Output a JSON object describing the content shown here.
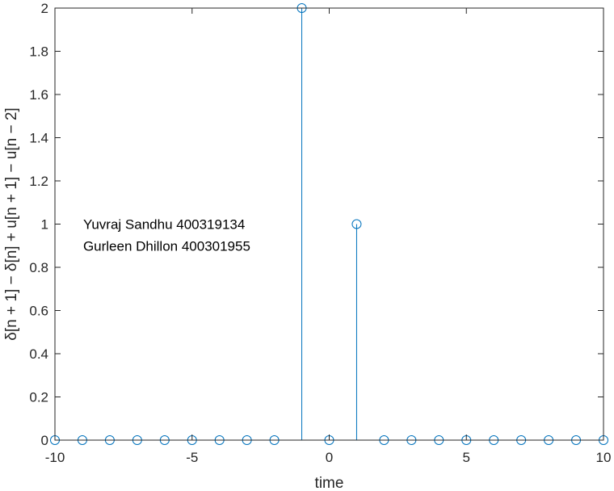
{
  "chart_data": {
    "type": "stem",
    "title": "",
    "xlabel": "time",
    "ylabel": "δ[n + 1] − δ[n] + u[n + 1] − u[n − 2]",
    "xlim": [
      -10,
      10
    ],
    "ylim": [
      0,
      2
    ],
    "xticks": [
      -10,
      -5,
      0,
      5,
      10
    ],
    "xtick_labels": [
      "-10",
      "-5",
      "0",
      "5",
      "10"
    ],
    "yticks": [
      0,
      0.2,
      0.4,
      0.6,
      0.8,
      1,
      1.2,
      1.4,
      1.6,
      1.8,
      2
    ],
    "ytick_labels": [
      "0",
      "0.2",
      "0.4",
      "0.6",
      "0.8",
      "1",
      "1.2",
      "1.4",
      "1.6",
      "1.8",
      "2"
    ],
    "grid": false,
    "box": true,
    "series": [
      {
        "x": [
          -10,
          -9,
          -8,
          -7,
          -6,
          -5,
          -4,
          -3,
          -2,
          -1,
          0,
          1,
          2,
          3,
          4,
          5,
          6,
          7,
          8,
          9,
          10
        ],
        "y": [
          0,
          0,
          0,
          0,
          0,
          0,
          0,
          0,
          0,
          2,
          0,
          1,
          0,
          0,
          0,
          0,
          0,
          0,
          0,
          0,
          0
        ],
        "color": "#0072BD",
        "marker": "open-circle"
      }
    ],
    "annotations": [
      {
        "text": "Yuvraj Sandhu 400319134",
        "x": -9.0,
        "y": 1.0
      },
      {
        "text": "Gurleen Dhillon 400301955",
        "x": -9.0,
        "y": 0.9
      }
    ]
  }
}
